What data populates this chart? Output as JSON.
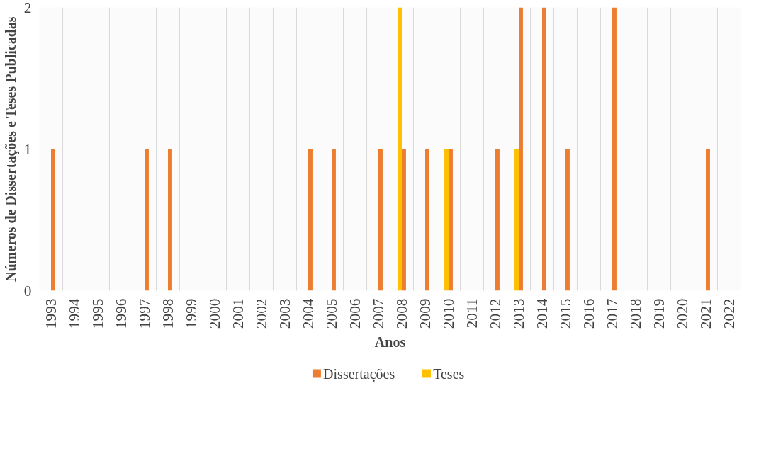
{
  "chart_data": {
    "type": "bar",
    "xlabel": "Anos",
    "ylabel": "Números de Dissertações e Teses Publicadas",
    "categories": [
      "1993",
      "1994",
      "1995",
      "1996",
      "1997",
      "1998",
      "1999",
      "2000",
      "2001",
      "2002",
      "2003",
      "2004",
      "2005",
      "2006",
      "2007",
      "2008",
      "2009",
      "2010",
      "2011",
      "2012",
      "2013",
      "2014",
      "2015",
      "2016",
      "2017",
      "2018",
      "2019",
      "2020",
      "2021",
      "2022"
    ],
    "series": [
      {
        "name": "Dissertações",
        "color": "#ed7d31",
        "values": [
          1,
          0,
          0,
          0,
          1,
          1,
          0,
          0,
          0,
          0,
          0,
          1,
          1,
          0,
          1,
          1,
          1,
          1,
          0,
          1,
          2,
          2,
          1,
          0,
          2,
          0,
          0,
          0,
          1,
          0
        ]
      },
      {
        "name": "Teses",
        "color": "#ffc000",
        "values": [
          0,
          0,
          0,
          0,
          0,
          0,
          0,
          0,
          0,
          0,
          0,
          0,
          0,
          0,
          0,
          2,
          0,
          1,
          0,
          0,
          1,
          0,
          0,
          0,
          0,
          0,
          0,
          0,
          0,
          0
        ]
      }
    ],
    "ylim": [
      0,
      2
    ],
    "yticks": [
      0,
      1,
      2
    ],
    "grid": true,
    "legend": "bottom"
  }
}
